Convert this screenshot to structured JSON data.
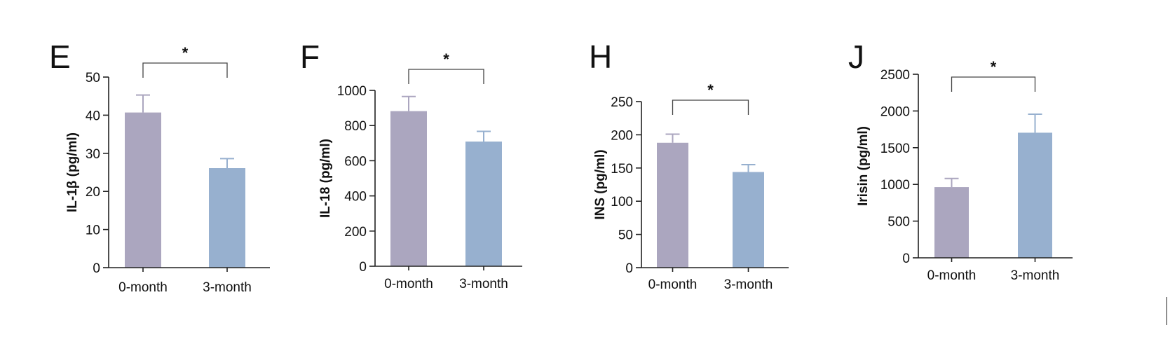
{
  "chart_data": [
    {
      "type": "bar",
      "panel": "E",
      "categories": [
        "0-month",
        "3-month"
      ],
      "values": [
        40.7,
        26.1
      ],
      "errors": [
        4.6,
        2.5
      ],
      "ylabel": "IL-1β (pg/ml)",
      "ylim": [
        0,
        50
      ],
      "yticks": [
        0,
        10,
        20,
        30,
        40,
        50
      ],
      "significance": "*",
      "colors": [
        "#aba6bf",
        "#97b0cf"
      ],
      "grid": false
    },
    {
      "type": "bar",
      "panel": "F",
      "categories": [
        "0-month",
        "3-month"
      ],
      "values": [
        882,
        709
      ],
      "errors": [
        83,
        58
      ],
      "ylabel": "IL-18 (pg/ml)",
      "ylim": [
        0,
        1000
      ],
      "yticks": [
        0,
        200,
        400,
        600,
        800,
        1000
      ],
      "significance": "*",
      "colors": [
        "#aba6bf",
        "#97b0cf"
      ],
      "grid": false
    },
    {
      "type": "bar",
      "panel": "H",
      "categories": [
        "0-month",
        "3-month"
      ],
      "values": [
        188,
        144
      ],
      "errors": [
        13,
        11
      ],
      "ylabel": "INS (pg/ml)",
      "ylim": [
        0,
        250
      ],
      "yticks": [
        0,
        50,
        100,
        150,
        200,
        250
      ],
      "significance": "*",
      "colors": [
        "#aba6bf",
        "#97b0cf"
      ],
      "grid": false
    },
    {
      "type": "bar",
      "panel": "J",
      "categories": [
        "0-month",
        "3-month"
      ],
      "values": [
        963,
        1704
      ],
      "errors": [
        118,
        252
      ],
      "ylabel": "Irisin (pg/ml)",
      "ylim": [
        0,
        2500
      ],
      "yticks": [
        0,
        500,
        1000,
        1500,
        2000,
        2500
      ],
      "significance": "*",
      "colors": [
        "#aba6bf",
        "#97b0cf"
      ],
      "grid": false
    }
  ]
}
